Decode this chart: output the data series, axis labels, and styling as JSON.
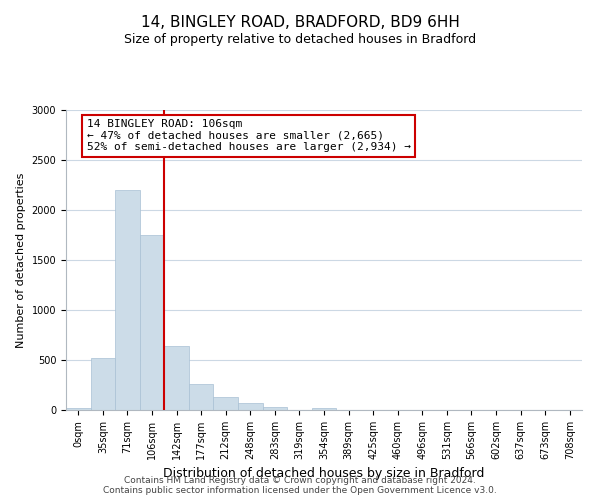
{
  "title": "14, BINGLEY ROAD, BRADFORD, BD9 6HH",
  "subtitle": "Size of property relative to detached houses in Bradford",
  "xlabel": "Distribution of detached houses by size in Bradford",
  "ylabel": "Number of detached properties",
  "bin_labels": [
    "0sqm",
    "35sqm",
    "71sqm",
    "106sqm",
    "142sqm",
    "177sqm",
    "212sqm",
    "248sqm",
    "283sqm",
    "319sqm",
    "354sqm",
    "389sqm",
    "425sqm",
    "460sqm",
    "496sqm",
    "531sqm",
    "566sqm",
    "602sqm",
    "637sqm",
    "673sqm",
    "708sqm"
  ],
  "bar_values": [
    20,
    520,
    2200,
    1750,
    640,
    265,
    135,
    75,
    30,
    5,
    20,
    0,
    0,
    0,
    0,
    0,
    0,
    0,
    0,
    0,
    0
  ],
  "bar_color": "#ccdce8",
  "bar_edge_color": "#a8c0d4",
  "vline_x_index": 3,
  "vline_color": "#cc0000",
  "annotation_title": "14 BINGLEY ROAD: 106sqm",
  "annotation_line1": "← 47% of detached houses are smaller (2,665)",
  "annotation_line2": "52% of semi-detached houses are larger (2,934) →",
  "annotation_box_color": "#ffffff",
  "annotation_box_edge_color": "#cc0000",
  "ylim": [
    0,
    3000
  ],
  "yticks": [
    0,
    500,
    1000,
    1500,
    2000,
    2500,
    3000
  ],
  "footer_line1": "Contains HM Land Registry data © Crown copyright and database right 2024.",
  "footer_line2": "Contains public sector information licensed under the Open Government Licence v3.0.",
  "bg_color": "#ffffff",
  "grid_color": "#ccd8e4",
  "title_fontsize": 11,
  "subtitle_fontsize": 9,
  "ylabel_fontsize": 8,
  "xlabel_fontsize": 9,
  "tick_fontsize": 7,
  "footer_fontsize": 6.5
}
